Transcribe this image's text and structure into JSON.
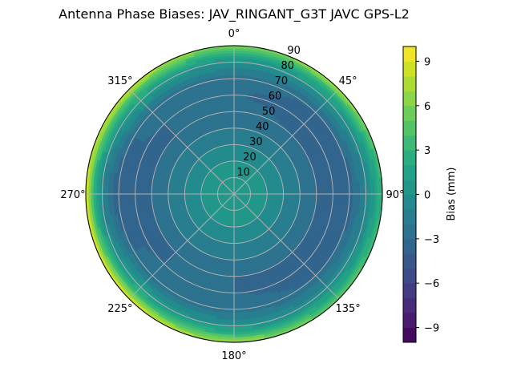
{
  "chart_data": {
    "type": "heatmap",
    "subtype": "polar-filled-contour",
    "title": "Antenna Phase Biases: JAV_RINGANT_G3T JAVC GPS-L2",
    "angular_axis": {
      "direction": "clockwise",
      "zero_location": "top",
      "tick_labels": [
        "0°",
        "45°",
        "90°",
        "135°",
        "180°",
        "225°",
        "270°",
        "315°"
      ],
      "tick_values": [
        0,
        45,
        90,
        135,
        180,
        225,
        270,
        315
      ]
    },
    "radial_axis": {
      "range": [
        0,
        90
      ],
      "tick_values": [
        10,
        20,
        30,
        40,
        50,
        60,
        70,
        80,
        90
      ],
      "tick_labels": [
        "10",
        "20",
        "30",
        "40",
        "50",
        "60",
        "70",
        "80",
        "90"
      ]
    },
    "grid": true,
    "colormap": "viridis",
    "color_levels": {
      "min": -10,
      "max": 10,
      "step": 1
    },
    "colorbar": {
      "label": "Bias (mm)",
      "location": "right",
      "tick_values": [
        9,
        6,
        3,
        0,
        -3,
        -6,
        -9
      ],
      "tick_labels": [
        "9",
        "6",
        "3",
        "0",
        "−3",
        "−6",
        "−9"
      ]
    },
    "field": {
      "radial_values": [
        0,
        10,
        20,
        30,
        40,
        50,
        60,
        70,
        80,
        85,
        90
      ],
      "azimuths": [
        0,
        45,
        90,
        135,
        180,
        225,
        270,
        315
      ],
      "bias_mm": [
        [
          1,
          0.5,
          0,
          -1,
          -2,
          -2.5,
          -3,
          -2.5,
          0,
          2.5,
          6
        ],
        [
          1,
          0.5,
          0,
          -1,
          -2,
          -3,
          -3.5,
          -3,
          0,
          3,
          7
        ],
        [
          1,
          0.5,
          0,
          -1,
          -2,
          -3,
          -4,
          -3.5,
          -1,
          1,
          3
        ],
        [
          1,
          0.5,
          0,
          -1,
          -2,
          -3,
          -3.5,
          -3,
          -0.5,
          2,
          5
        ],
        [
          1,
          0.5,
          0,
          -1,
          -2,
          -3,
          -3,
          -2.5,
          0,
          3,
          7
        ],
        [
          1,
          0.5,
          0,
          -1,
          -2,
          -3,
          -3,
          -2.5,
          1,
          4,
          9
        ],
        [
          1,
          0.5,
          0,
          -1,
          -2,
          -3,
          -3.5,
          -4,
          -1,
          3,
          9
        ],
        [
          1,
          0.5,
          0,
          -1,
          -2,
          -3,
          -3,
          -2.5,
          1,
          4,
          8
        ]
      ]
    }
  }
}
